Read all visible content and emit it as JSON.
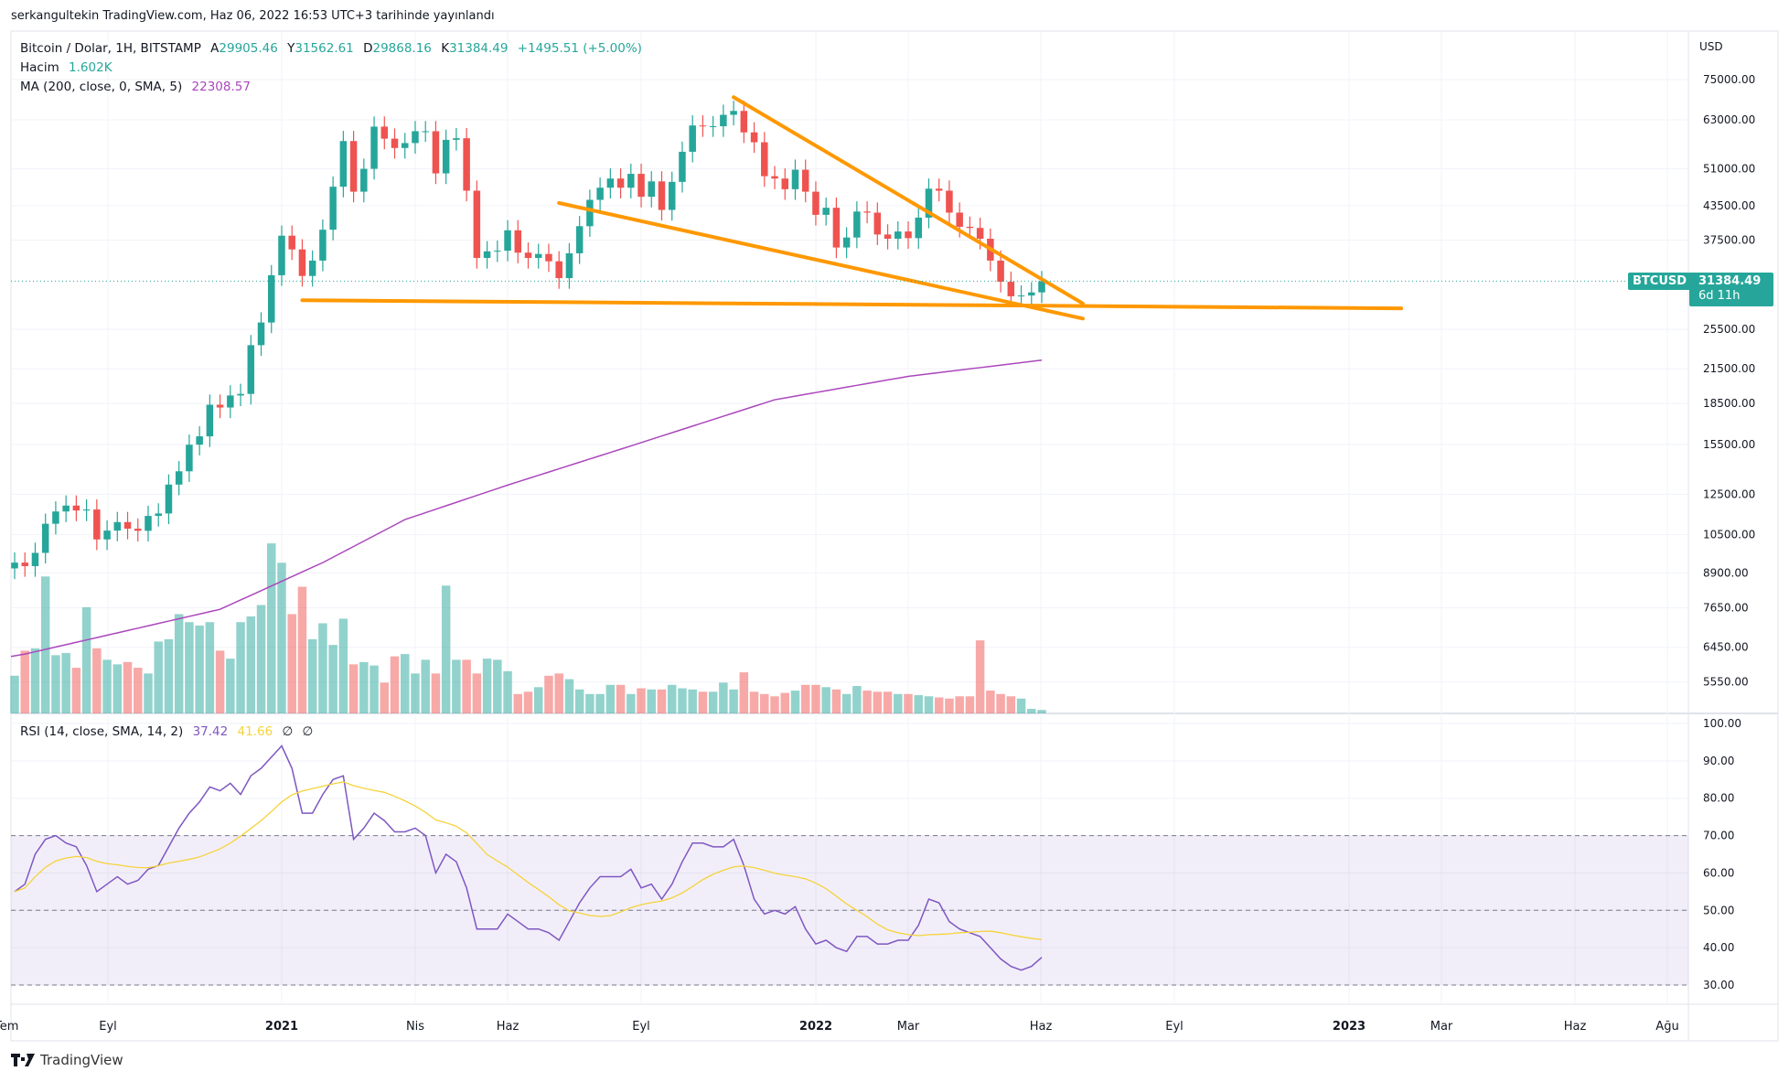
{
  "publish_note": "serkangultekin TradingView.com, Haz 06, 2022 16:53 UTC+3 tarihinde yayınlandı",
  "legend": {
    "symbol": "Bitcoin / Dolar, 1H, BITSTAMP",
    "open_label": "A",
    "open": "29905.46",
    "high_label": "Y",
    "high": "31562.61",
    "low_label": "D",
    "low": "29868.16",
    "close_label": "K",
    "close": "31384.49",
    "change": "+1495.51 (+5.00%)",
    "volume_label": "Hacim",
    "volume": "1.602K",
    "ma_label": "MA (200, close, 0, SMA, 5)",
    "ma_value": "22308.57",
    "rsi_label": "RSI (14, close, SMA, 14, 2)",
    "rsi_value": "37.42",
    "rsi_ma_value": "41.66",
    "rsi_extra1": "∅",
    "rsi_extra2": "∅"
  },
  "price_axis": {
    "currency": "USD",
    "labels": [
      "75000.00",
      "63000.00",
      "51000.00",
      "43500.00",
      "37500.00",
      "25500.00",
      "21500.00",
      "18500.00",
      "15500.00",
      "12500.00",
      "10500.00",
      "8900.00",
      "7650.00",
      "6450.00",
      "5550.00"
    ]
  },
  "rsi_axis": {
    "labels": [
      "100.00",
      "90.00",
      "80.00",
      "70.00",
      "60.00",
      "50.00",
      "40.00",
      "30.00"
    ]
  },
  "time_axis": {
    "labels": [
      "Tem",
      "Eyl",
      "2021",
      "Nis",
      "Haz",
      "Eyl",
      "2022",
      "Mar",
      "Haz",
      "Eyl",
      "2023",
      "Mar",
      "Haz",
      "Ağu"
    ]
  },
  "last_price_badge": {
    "symbol": "BTCUSD",
    "price": "31384.49",
    "countdown": "6d 11h"
  },
  "footer": {
    "brand": "TradingView"
  },
  "colors": {
    "up": "#26a69a",
    "down": "#ef5350",
    "ma": "#ab47bc",
    "rsi": "#7e57c2",
    "rsi_ma": "#f5d33a",
    "trendline": "#ff9800"
  },
  "chart_data": {
    "type": "candlestick",
    "title": "Bitcoin / Dolar, 1H, BITSTAMP",
    "scale": "log",
    "ylim": [
      5200,
      80000
    ],
    "first_open": 9070,
    "close": [
      9300,
      9160,
      9700,
      11000,
      11600,
      11900,
      11650,
      11700,
      10280,
      10680,
      11080,
      10770,
      10670,
      11380,
      11500,
      13030,
      13800,
      15480,
      16050,
      18400,
      18180,
      19150,
      19280,
      23800,
      26250,
      32200,
      38200,
      36000,
      32100,
      34300,
      39200,
      47200,
      57500,
      46200,
      51000,
      61200,
      58100,
      55800,
      57000,
      60000,
      60000,
      50000,
      57800,
      58200,
      46400,
      34700,
      35700,
      35800,
      39100,
      35500,
      34700,
      35300,
      34200,
      31800,
      35400,
      39800,
      44600,
      47000,
      48900,
      47000,
      49900,
      45200,
      48300,
      42700,
      48200,
      54900,
      61500,
      61300,
      61300,
      64400,
      65500,
      59700,
      57200,
      49400,
      48900,
      46700,
      50800,
      46200,
      41800,
      43100,
      36300,
      37900,
      42400,
      42200,
      38400,
      37700,
      38900,
      37800,
      41300,
      46800,
      46400,
      42200,
      39700,
      39500,
      37700,
      34300,
      31300,
      29400,
      29500,
      29900,
      31384.49
    ],
    "volume": [
      33,
      55,
      57,
      120,
      51,
      53,
      40,
      93,
      57,
      47,
      43,
      45,
      40,
      35,
      63,
      65,
      87,
      80,
      77,
      80,
      55,
      48,
      80,
      85,
      95,
      149,
      132,
      87,
      111,
      65,
      79,
      60,
      83,
      43,
      45,
      42,
      27,
      50,
      52,
      35,
      47,
      35,
      112,
      47,
      47,
      35,
      48,
      47,
      37,
      17,
      19,
      23,
      33,
      35,
      30,
      21,
      17,
      17,
      25,
      25,
      17,
      22,
      21,
      21,
      25,
      22,
      21,
      19,
      19,
      27,
      21,
      36,
      19,
      17,
      15,
      18,
      20,
      25,
      25,
      23,
      21,
      17,
      24,
      20,
      19,
      19,
      17,
      17,
      16,
      15,
      14,
      13,
      15,
      15,
      64,
      20,
      17,
      15,
      13,
      4,
      3
    ],
    "ma200": [
      [
        0,
        6200
      ],
      [
        20,
        7600
      ],
      [
        30,
        9300
      ],
      [
        38,
        11200
      ],
      [
        48,
        13000
      ],
      [
        60,
        15400
      ],
      [
        74,
        18800
      ],
      [
        87,
        20800
      ],
      [
        100,
        22308.57
      ]
    ],
    "rsi": {
      "levels": [
        70,
        50,
        30
      ],
      "ylim": [
        25,
        100
      ],
      "ma_period": 14,
      "values": [
        55,
        57,
        65,
        69,
        70,
        68,
        67,
        62,
        55,
        57,
        59,
        57,
        58,
        61,
        62,
        67,
        72,
        76,
        79,
        83,
        82,
        84,
        81,
        86,
        88,
        91,
        94,
        88,
        76,
        76,
        81,
        85,
        86,
        69,
        72,
        76,
        74,
        71,
        71,
        72,
        70,
        60,
        65,
        63,
        56,
        45,
        45,
        45,
        49,
        47,
        45,
        45,
        44,
        42,
        47,
        52,
        56,
        59,
        59,
        59,
        61,
        56,
        57,
        53,
        57,
        63,
        68,
        68,
        67,
        67,
        69,
        62,
        53,
        49,
        50,
        49,
        51,
        45,
        41,
        42,
        40,
        39,
        43,
        43,
        41,
        41,
        42,
        42,
        46,
        53,
        52,
        47,
        45,
        44,
        43,
        40,
        37,
        35,
        34,
        35,
        37.42
      ]
    },
    "trendlines": [
      {
        "name": "upper-resistance",
        "from": {
          "week": 70,
          "price": 69500
        },
        "to": {
          "week": 104,
          "price": 28500
        }
      },
      {
        "name": "lower-support-slope",
        "from": {
          "week": 53,
          "price": 44000
        },
        "to": {
          "week": 104,
          "price": 26700
        }
      },
      {
        "name": "horizontal-support",
        "from": {
          "week": 28,
          "price": 28900
        },
        "to": {
          "week": 135,
          "price": 27900
        }
      }
    ]
  }
}
